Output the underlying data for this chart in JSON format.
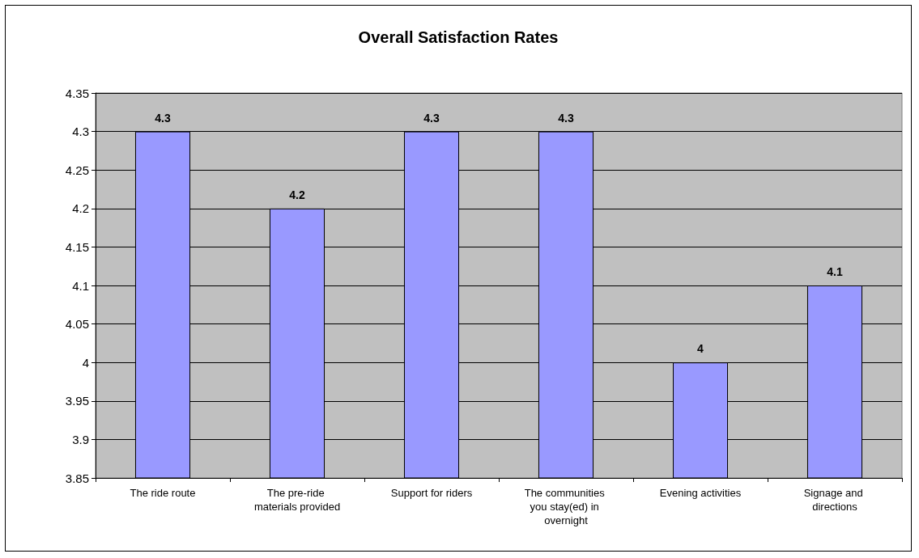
{
  "chart_data": {
    "type": "bar",
    "title": "Overall Satisfaction Rates",
    "categories": [
      "The ride route",
      "The pre-ride materials provided",
      "Support for riders",
      "The communities you stay(ed) in overnight",
      "Evening activities",
      "Signage and directions"
    ],
    "values": [
      4.3,
      4.2,
      4.3,
      4.3,
      4,
      4.1
    ],
    "color": "#9999ff",
    "ylim": [
      3.85,
      4.35
    ],
    "yticks": [
      3.85,
      3.9,
      3.95,
      4,
      4.05,
      4.1,
      4.15,
      4.2,
      4.25,
      4.3,
      4.35
    ],
    "grid": "y",
    "data_labels": true
  }
}
